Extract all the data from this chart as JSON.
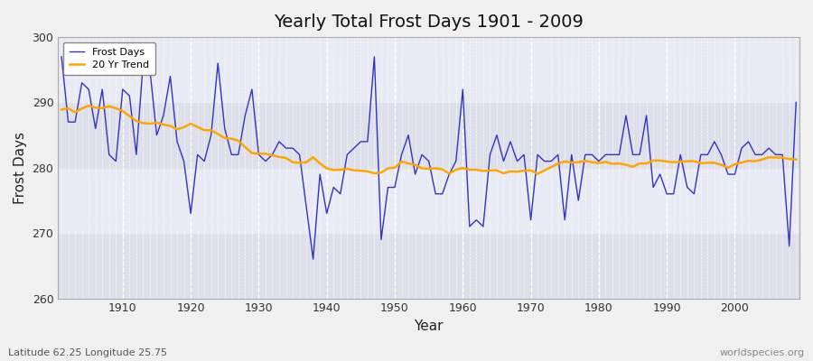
{
  "title": "Yearly Total Frost Days 1901 - 2009",
  "xlabel": "Year",
  "ylabel": "Frost Days",
  "subtitle": "Latitude 62.25 Longitude 25.75",
  "watermark": "worldspecies.org",
  "years": [
    1901,
    1902,
    1903,
    1904,
    1905,
    1906,
    1907,
    1908,
    1909,
    1910,
    1911,
    1912,
    1913,
    1914,
    1915,
    1916,
    1917,
    1918,
    1919,
    1920,
    1921,
    1922,
    1923,
    1924,
    1925,
    1926,
    1927,
    1928,
    1929,
    1930,
    1931,
    1932,
    1933,
    1934,
    1935,
    1936,
    1937,
    1938,
    1939,
    1940,
    1941,
    1942,
    1943,
    1944,
    1945,
    1946,
    1947,
    1948,
    1949,
    1950,
    1951,
    1952,
    1953,
    1954,
    1955,
    1956,
    1957,
    1958,
    1959,
    1960,
    1961,
    1962,
    1963,
    1964,
    1965,
    1966,
    1967,
    1968,
    1969,
    1970,
    1971,
    1972,
    1973,
    1974,
    1975,
    1976,
    1977,
    1978,
    1979,
    1980,
    1981,
    1982,
    1983,
    1984,
    1985,
    1986,
    1987,
    1988,
    1989,
    1990,
    1991,
    1992,
    1993,
    1994,
    1995,
    1996,
    1997,
    1998,
    1999,
    2000,
    2001,
    2002,
    2003,
    2004,
    2005,
    2006,
    2007,
    2008,
    2009
  ],
  "frost_days": [
    297,
    287,
    287,
    293,
    292,
    286,
    292,
    282,
    281,
    292,
    291,
    282,
    296,
    295,
    285,
    288,
    294,
    284,
    281,
    273,
    282,
    281,
    285,
    296,
    286,
    282,
    282,
    288,
    292,
    282,
    281,
    282,
    284,
    283,
    283,
    282,
    274,
    266,
    279,
    273,
    277,
    276,
    282,
    283,
    284,
    284,
    297,
    269,
    277,
    277,
    282,
    285,
    279,
    282,
    281,
    276,
    276,
    279,
    281,
    292,
    271,
    272,
    271,
    282,
    285,
    281,
    284,
    281,
    282,
    272,
    282,
    281,
    281,
    282,
    272,
    282,
    275,
    282,
    282,
    281,
    282,
    282,
    282,
    288,
    282,
    282,
    288,
    277,
    279,
    276,
    276,
    282,
    277,
    276,
    282,
    282,
    284,
    282,
    279,
    279,
    283,
    284,
    282,
    282,
    283,
    282,
    282,
    268,
    290
  ],
  "line_color": "#3333bb",
  "trend_color": "#FFA500",
  "fig_bg_color": "#f0f0f0",
  "plot_bg_color": "#e8eaf0",
  "band_colors": [
    "#dde0eb",
    "#e8eaf4"
  ],
  "ylim": [
    260,
    300
  ],
  "yticks": [
    260,
    270,
    280,
    290,
    300
  ],
  "xticks": [
    1910,
    1920,
    1930,
    1940,
    1950,
    1960,
    1970,
    1980,
    1990,
    2000
  ],
  "legend_labels": [
    "Frost Days",
    "20 Yr Trend"
  ],
  "trend_window": 20
}
